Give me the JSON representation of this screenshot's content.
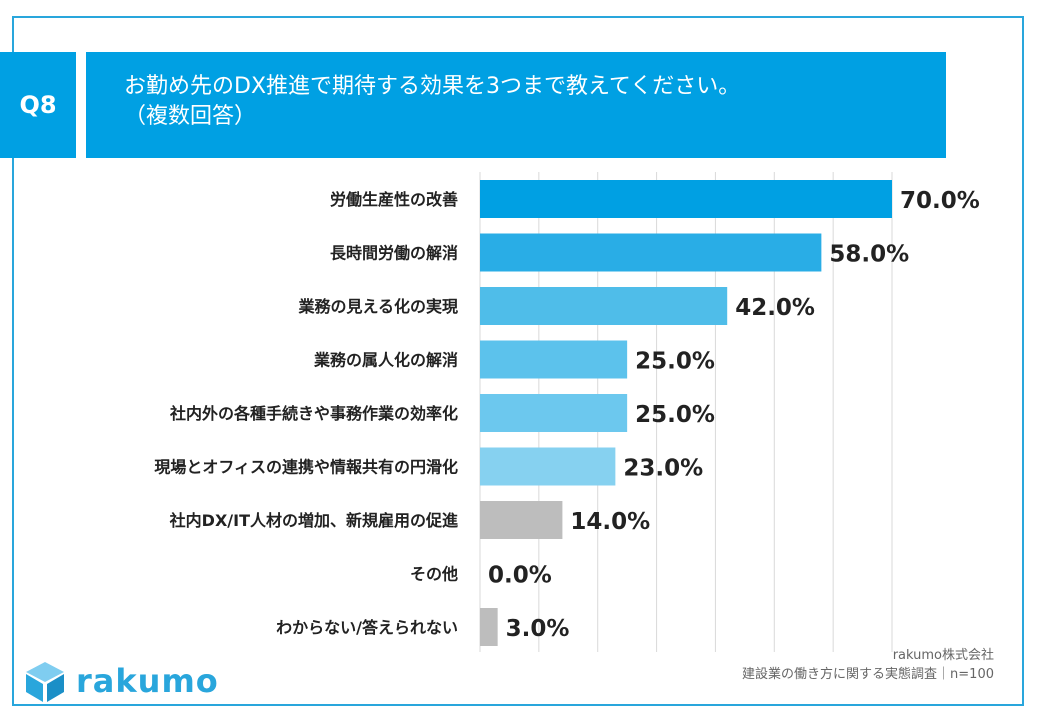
{
  "question": {
    "badge": "Q8",
    "line1": "お勤め先のDX推進で期待する効果を3つまで教えてください。",
    "line2": "（複数回答）"
  },
  "chart_data": {
    "type": "bar",
    "orientation": "horizontal",
    "title": "お勤め先のDX推進で期待する効果を3つまで教えてください。（複数回答）",
    "categories": [
      "労働生産性の改善",
      "長時間労働の解消",
      "業務の見える化の実現",
      "業務の属人化の解消",
      "社内外の各種手続きや事務作業の効率化",
      "現場とオフィスの連携や情報共有の円滑化",
      "社内DX/IT人材の増加、新規雇用の促進",
      "その他",
      "わからない/答えられない"
    ],
    "values": [
      70.0,
      58.0,
      42.0,
      25.0,
      25.0,
      23.0,
      14.0,
      0.0,
      3.0
    ],
    "value_labels": [
      "70.0%",
      "58.0%",
      "42.0%",
      "25.0%",
      "25.0%",
      "23.0%",
      "14.0%",
      "0.0%",
      "3.0%"
    ],
    "colors": [
      "#00a0e3",
      "#29ade6",
      "#4fbde9",
      "#5cc2ec",
      "#6cc8ee",
      "#86d1f0",
      "#bdbdbd",
      "#bdbdbd",
      "#bdbdbd"
    ],
    "xlim": [
      0,
      70
    ],
    "grid": true,
    "unit": "%"
  },
  "source": {
    "company": "rakumo株式会社",
    "survey": "建設業の働き方に関する実態調査｜n=100"
  },
  "logo": {
    "text": "rakumo",
    "colors": [
      "#29a6dc",
      "#7fcdf0",
      "#1b8fc7"
    ]
  }
}
